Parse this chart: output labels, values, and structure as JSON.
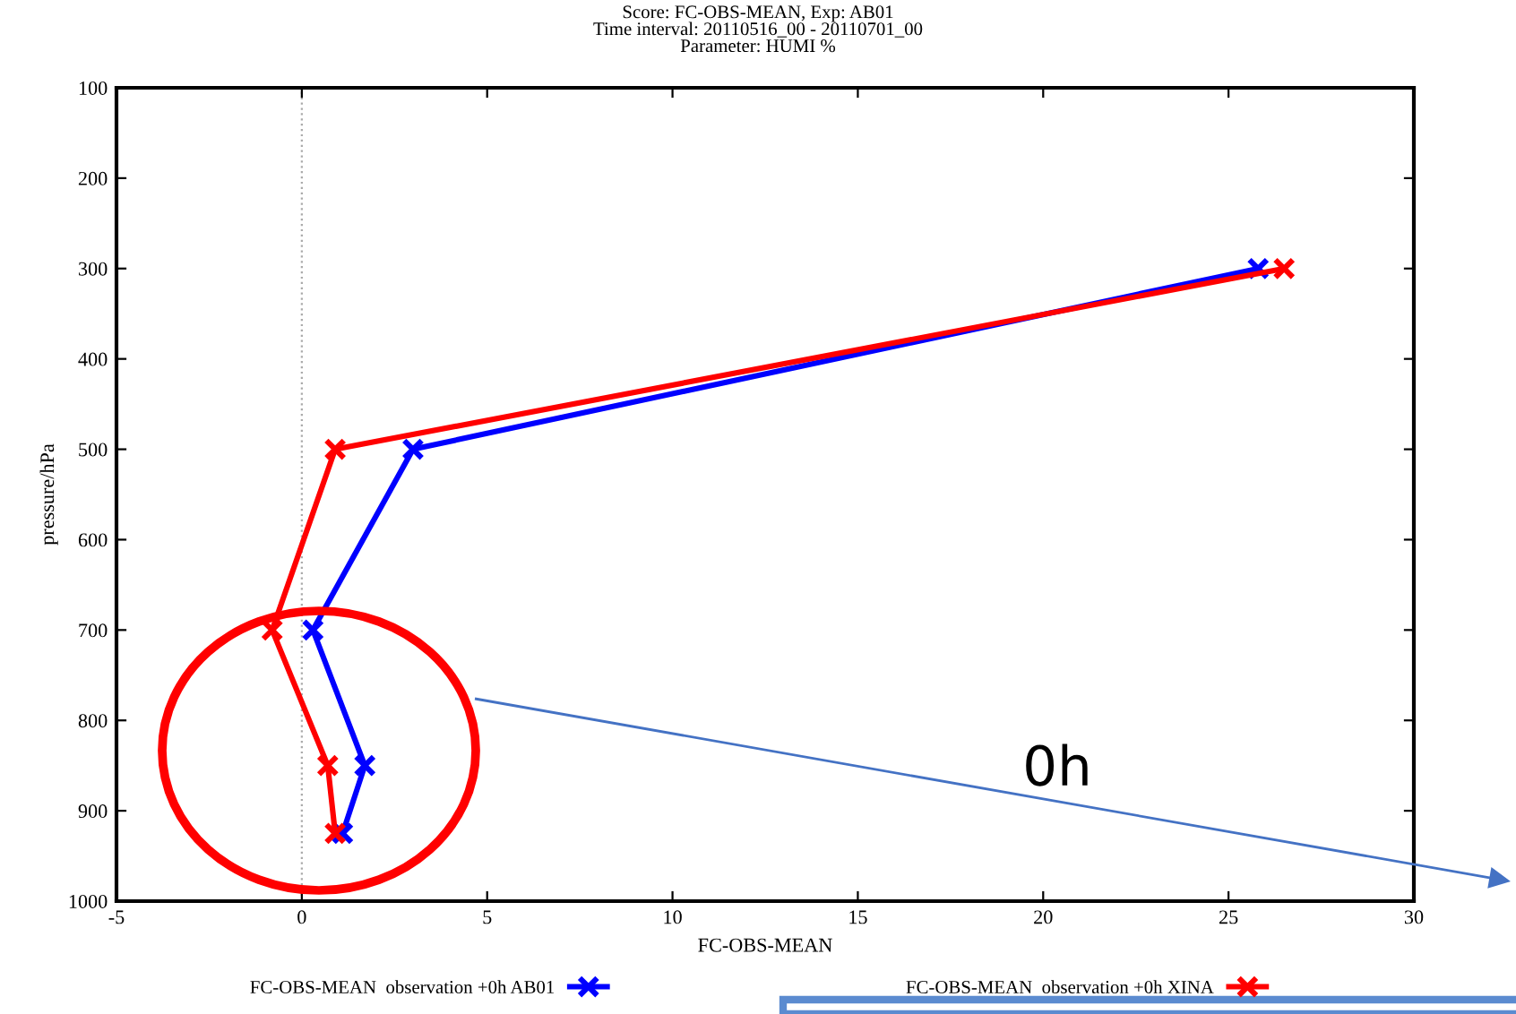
{
  "chart_data": {
    "type": "line",
    "title": "Score: FC-OBS-MEAN, Exp: AB01\nTime interval: 20110516_00 - 20110701_00\nParameter: HUMI %",
    "xlabel": "FC-OBS-MEAN",
    "ylabel": "pressure/hPa",
    "xlim": [
      -5,
      30
    ],
    "xticks": [
      -5,
      0,
      5,
      10,
      15,
      20,
      25,
      30
    ],
    "ylim": [
      1000,
      100
    ],
    "yticks": [
      100,
      200,
      300,
      400,
      500,
      600,
      700,
      800,
      900,
      1000
    ],
    "series": [
      {
        "name": "FC-OBS-MEAN  observation +0h AB01",
        "color": "#0000ff",
        "x": [
          1.1,
          1.7,
          0.3,
          3.0,
          25.8
        ],
        "values": [
          925,
          850,
          700,
          500,
          300
        ]
      },
      {
        "name": "FC-OBS-MEAN  observation +0h XINA",
        "color": "#ff0000",
        "x": [
          0.9,
          0.7,
          -0.8,
          0.9,
          26.5
        ],
        "values": [
          925,
          850,
          700,
          500,
          300
        ]
      }
    ],
    "marker": "cross",
    "line_style": "solid",
    "legend": "bottom",
    "grid": false,
    "ref_lines": [
      {
        "axis": "x",
        "value": 0,
        "color": "#aaaaaa",
        "line_style": "dotted"
      }
    ],
    "annotations": [
      "0h"
    ]
  }
}
